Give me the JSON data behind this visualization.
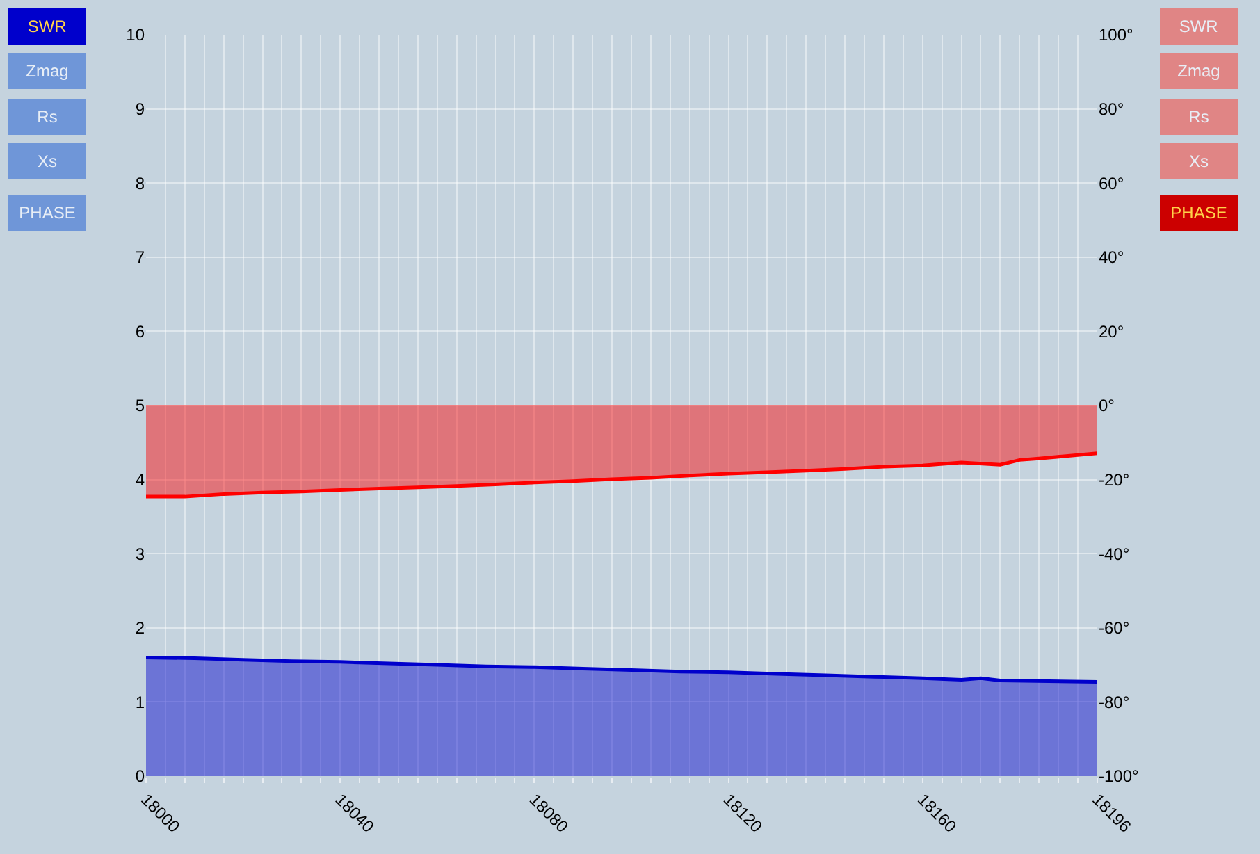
{
  "chart_data": {
    "type": "area",
    "x": [
      18000,
      18010,
      18020,
      18030,
      18040,
      18050,
      18060,
      18070,
      18080,
      18090,
      18100,
      18110,
      18120,
      18130,
      18140,
      18150,
      18160,
      18168,
      18172,
      18176,
      18186,
      18196
    ],
    "series": [
      {
        "color": "#0000cc",
        "values": [
          1.6,
          1.59,
          1.57,
          1.55,
          1.54,
          1.52,
          1.5,
          1.48,
          1.47,
          1.45,
          1.43,
          1.41,
          1.4,
          1.38,
          1.36,
          1.34,
          1.32,
          1.3,
          1.32,
          1.29,
          1.28,
          1.27
        ]
      },
      {
        "color": "#ff0000",
        "axis": "y2",
        "x": [
          18000,
          18008,
          18016,
          18024,
          18032,
          18040,
          18048,
          18056,
          18064,
          18072,
          18080,
          18088,
          18096,
          18104,
          18112,
          18120,
          18128,
          18136,
          18144,
          18152,
          18160,
          18168,
          18176,
          18180,
          18184,
          18190,
          18196
        ],
        "values": [
          -24.6,
          -24.6,
          -23.9,
          -23.5,
          -23.2,
          -22.8,
          -22.4,
          -22.1,
          -21.7,
          -21.3,
          -20.8,
          -20.4,
          -19.9,
          -19.5,
          -18.9,
          -18.4,
          -18.0,
          -17.6,
          -17.1,
          -16.5,
          -16.2,
          -15.4,
          -16.0,
          -14.7,
          -14.3,
          -13.6,
          -12.9
        ]
      }
    ],
    "xlim": [
      18000,
      18196
    ],
    "xticks": [
      18000,
      {
        "value": 18004,
        "label": null
      },
      {
        "value": 18008,
        "label": null
      },
      {
        "value": 18012,
        "label": null
      },
      {
        "value": 18016,
        "label": null
      },
      {
        "value": 18020,
        "label": null
      },
      {
        "value": 18024,
        "label": null
      },
      {
        "value": 18028,
        "label": null
      },
      {
        "value": 18032,
        "label": null
      },
      {
        "value": 18036,
        "label": null
      },
      18040,
      {
        "value": 18044,
        "label": null
      },
      {
        "value": 18048,
        "label": null
      },
      {
        "value": 18052,
        "label": null
      },
      {
        "value": 18056,
        "label": null
      },
      {
        "value": 18060,
        "label": null
      },
      {
        "value": 18064,
        "label": null
      },
      {
        "value": 18068,
        "label": null
      },
      {
        "value": 18072,
        "label": null
      },
      {
        "value": 18076,
        "label": null
      },
      18080,
      {
        "value": 18084,
        "label": null
      },
      {
        "value": 18088,
        "label": null
      },
      {
        "value": 18092,
        "label": null
      },
      {
        "value": 18096,
        "label": null
      },
      {
        "value": 18100,
        "label": null
      },
      {
        "value": 18104,
        "label": null
      },
      {
        "value": 18108,
        "label": null
      },
      {
        "value": 18112,
        "label": null
      },
      {
        "value": 18116,
        "label": null
      },
      18120,
      {
        "value": 18124,
        "label": null
      },
      {
        "value": 18128,
        "label": null
      },
      {
        "value": 18132,
        "label": null
      },
      {
        "value": 18136,
        "label": null
      },
      {
        "value": 18140,
        "label": null
      },
      {
        "value": 18144,
        "label": null
      },
      {
        "value": 18148,
        "label": null
      },
      {
        "value": 18152,
        "label": null
      },
      {
        "value": 18156,
        "label": null
      },
      18160,
      {
        "value": 18164,
        "label": null
      },
      {
        "value": 18168,
        "label": null
      },
      {
        "value": 18172,
        "label": null
      },
      {
        "value": 18176,
        "label": null
      },
      {
        "value": 18180,
        "label": null
      },
      {
        "value": 18184,
        "label": null
      },
      {
        "value": 18188,
        "label": null
      },
      {
        "value": 18192,
        "label": null
      },
      18196
    ],
    "ylim": [
      0,
      10
    ],
    "yticks": [
      0,
      1,
      2,
      3,
      4,
      5,
      6,
      7,
      8,
      9,
      10
    ],
    "y2lim": [
      -100,
      100
    ],
    "y2ticks": [
      {
        "value": -100,
        "label": "-100°"
      },
      {
        "value": -80,
        "label": "-80°"
      },
      {
        "value": -60,
        "label": "-60°"
      },
      {
        "value": -40,
        "label": "-40°"
      },
      {
        "value": -20,
        "label": "-20°"
      },
      {
        "value": 0,
        "label": "0°"
      },
      {
        "value": 20,
        "label": "20°"
      },
      {
        "value": 40,
        "label": "40°"
      },
      {
        "value": 60,
        "label": "60°"
      },
      {
        "value": 80,
        "label": "80°"
      },
      {
        "value": 100,
        "label": "100°"
      }
    ],
    "grid": true,
    "annotations": [
      "SWR",
      "Zmag",
      "Rs",
      "Xs",
      "PHASE",
      "SWR",
      "Zmag",
      "Rs",
      "Xs",
      "PHASE"
    ]
  }
}
